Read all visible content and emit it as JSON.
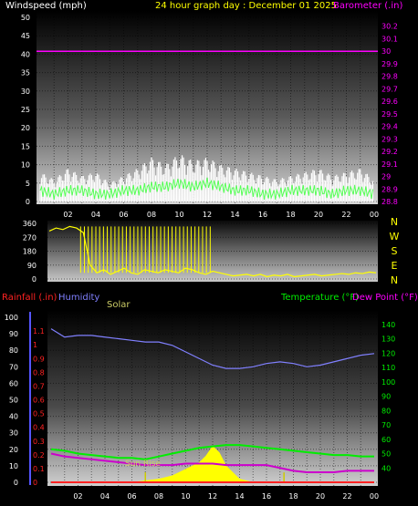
{
  "header": {
    "title": "24 hour graph day : December 01 2025",
    "left_label": "Windspeed (mph)",
    "right_label": "Barometer (.in)"
  },
  "colors": {
    "background": "#000000",
    "title": "#ffff00",
    "barometer": "#ff00ff",
    "gust": "#ffffff",
    "windspeed": "#55ff55",
    "direction": "#ffff00",
    "rainfall": "#ff2222",
    "humidity": "#8080ff",
    "solar": "#ffff00",
    "temperature": "#00ee00",
    "dewpoint": "#cc00cc",
    "axis_text": "#ffffff",
    "sunrise_text": "#cccc66"
  },
  "chart_data": [
    {
      "type": "line",
      "name": "wind-barometer",
      "x_tick_labels": [
        "02",
        "04",
        "06",
        "08",
        "10",
        "12",
        "14",
        "16",
        "18",
        "20",
        "22",
        "00"
      ],
      "left_axis": {
        "label": "Windspeed (mph)",
        "range": [
          0,
          50
        ],
        "ticks": [
          "0",
          "5",
          "10",
          "15",
          "20",
          "25",
          "30",
          "35",
          "40",
          "45",
          "50"
        ]
      },
      "right_axis": {
        "label": "Barometer (.in)",
        "range": [
          28.8,
          30.3
        ],
        "ticks": [
          "28.8",
          "28.9",
          "29",
          "29.1",
          "29.2",
          "29.3",
          "29.4",
          "29.5",
          "29.6",
          "29.7",
          "29.8",
          "29.9",
          "30",
          "30.1",
          "30.2"
        ]
      },
      "grid": true,
      "series": [
        {
          "name": "Barometer (.in)",
          "axis": "right",
          "x": [
            0,
            24
          ],
          "y": [
            30.0,
            30.0
          ]
        },
        {
          "name": "Gust",
          "axis": "left",
          "x": [
            0,
            1,
            2,
            3,
            4,
            5,
            6,
            7,
            8,
            9,
            10,
            11,
            12,
            13,
            14,
            15,
            16,
            17,
            18,
            19,
            20,
            21,
            22,
            23,
            24
          ],
          "y": [
            8,
            6,
            9,
            7,
            8,
            5,
            7,
            9,
            12,
            10,
            13,
            11,
            12,
            10,
            9,
            8,
            7,
            6,
            7,
            8,
            9,
            7,
            8,
            9,
            6
          ]
        },
        {
          "name": "Windspeed (mph)",
          "axis": "left",
          "x": [
            0,
            1,
            2,
            3,
            4,
            5,
            6,
            7,
            8,
            9,
            10,
            11,
            12,
            13,
            14,
            15,
            16,
            17,
            18,
            19,
            20,
            21,
            22,
            23,
            24
          ],
          "y": [
            3,
            2,
            3,
            3,
            2,
            2,
            3,
            3,
            4,
            4,
            5,
            4,
            5,
            4,
            3,
            3,
            2,
            2,
            3,
            3,
            3,
            2,
            3,
            3,
            2
          ]
        }
      ]
    },
    {
      "type": "line",
      "name": "wind-direction",
      "x_tick_labels": [],
      "left_axis": {
        "range": [
          0,
          360
        ],
        "ticks": [
          "0",
          "90",
          "180",
          "270",
          "360"
        ]
      },
      "right_axis": {
        "ticks": [
          "N",
          "W",
          "S",
          "E",
          "N"
        ]
      },
      "grid": true,
      "series": [
        {
          "name": "Direction",
          "x": [
            0,
            0.5,
            1,
            1.5,
            2,
            2.5,
            3,
            3.5,
            4,
            4.5,
            5,
            5.5,
            6,
            6.5,
            7,
            7.5,
            8,
            8.5,
            9,
            9.5,
            10,
            10.5,
            11,
            11.5,
            12,
            12.5,
            13,
            13.5,
            14,
            14.5,
            15,
            15.5,
            16,
            16.5,
            17,
            17.5,
            18,
            18.5,
            19,
            19.5,
            20,
            20.5,
            21,
            21.5,
            22,
            22.5,
            23,
            23.5,
            24
          ],
          "y": [
            310,
            330,
            320,
            340,
            330,
            300,
            90,
            40,
            60,
            30,
            50,
            70,
            40,
            30,
            60,
            50,
            40,
            60,
            50,
            40,
            70,
            60,
            40,
            30,
            50,
            40,
            30,
            20,
            25,
            30,
            20,
            30,
            15,
            25,
            20,
            30,
            15,
            20,
            25,
            30,
            20,
            25,
            30,
            35,
            30,
            40,
            35,
            45,
            40
          ]
        }
      ]
    },
    {
      "type": "line",
      "name": "temperature-humidity",
      "x_tick_labels": [
        "02",
        "04",
        "06",
        "08",
        "10",
        "12",
        "14",
        "16",
        "18",
        "20",
        "22",
        "00"
      ],
      "legend": [
        "Rainfall (.in)",
        "Humidity",
        "Solar",
        "Temperature (°F)",
        "Dew Point (°F)"
      ],
      "left_axis_humidity": {
        "label": "Humidity",
        "range": [
          0,
          100
        ],
        "ticks": [
          "0",
          "10",
          "20",
          "30",
          "40",
          "50",
          "60",
          "70",
          "80",
          "90",
          "100"
        ]
      },
      "left_axis_rain": {
        "label": "Rainfall (.in)",
        "range": [
          0,
          1.2
        ],
        "ticks": [
          "0",
          "0.1",
          "0.2",
          "0.3",
          "0.4",
          "0.5",
          "0.6",
          "0.7",
          "0.8",
          "0.9",
          "1",
          "1.1"
        ]
      },
      "right_axis": {
        "label": "Temperature (°F)",
        "range": [
          30,
          145
        ],
        "ticks": [
          "40",
          "50",
          "60",
          "70",
          "80",
          "90",
          "100",
          "110",
          "120",
          "130",
          "140"
        ]
      },
      "grid": true,
      "series": [
        {
          "name": "Humidity",
          "x": [
            0,
            1,
            2,
            3,
            4,
            5,
            6,
            7,
            8,
            9,
            10,
            11,
            12,
            13,
            14,
            15,
            16,
            17,
            18,
            19,
            20,
            21,
            22,
            23,
            24
          ],
          "y": [
            93,
            88,
            89,
            89,
            88,
            87,
            86,
            85,
            85,
            83,
            79,
            75,
            71,
            69,
            69,
            70,
            72,
            73,
            72,
            70,
            71,
            73,
            75,
            77,
            78
          ]
        },
        {
          "name": "Temperature (°F)",
          "x": [
            0,
            1,
            2,
            3,
            4,
            5,
            6,
            7,
            8,
            9,
            10,
            11,
            12,
            13,
            14,
            15,
            16,
            17,
            18,
            19,
            20,
            21,
            22,
            23,
            24
          ],
          "y": [
            53,
            52,
            50,
            49,
            48,
            47,
            47,
            46,
            48,
            50,
            52,
            54,
            55,
            56,
            56,
            55,
            54,
            53,
            52,
            51,
            50,
            49,
            49,
            48,
            48
          ]
        },
        {
          "name": "Dew Point (°F)",
          "x": [
            0,
            1,
            2,
            3,
            4,
            5,
            6,
            7,
            8,
            9,
            10,
            11,
            12,
            13,
            14,
            15,
            16,
            17,
            18,
            19,
            20,
            21,
            22,
            23,
            24
          ],
          "y": [
            50,
            48,
            47,
            46,
            45,
            44,
            43,
            42,
            42,
            42,
            43,
            43,
            43,
            42,
            42,
            42,
            42,
            40,
            38,
            37,
            37,
            37,
            38,
            38,
            38
          ]
        },
        {
          "name": "Solar",
          "x": [
            0,
            5,
            6,
            7,
            8,
            9,
            10,
            11,
            11.5,
            12,
            12.5,
            13,
            13.5,
            14,
            15,
            24
          ],
          "y": [
            0,
            0,
            0,
            1,
            2,
            4,
            8,
            12,
            16,
            22,
            18,
            10,
            6,
            2,
            0,
            0
          ]
        },
        {
          "name": "Rainfall (.in)",
          "x": [
            0,
            24
          ],
          "y": [
            0,
            0
          ]
        }
      ],
      "annotation": "Sun Rise",
      "marker_hours": [
        7,
        17.3
      ]
    }
  ]
}
